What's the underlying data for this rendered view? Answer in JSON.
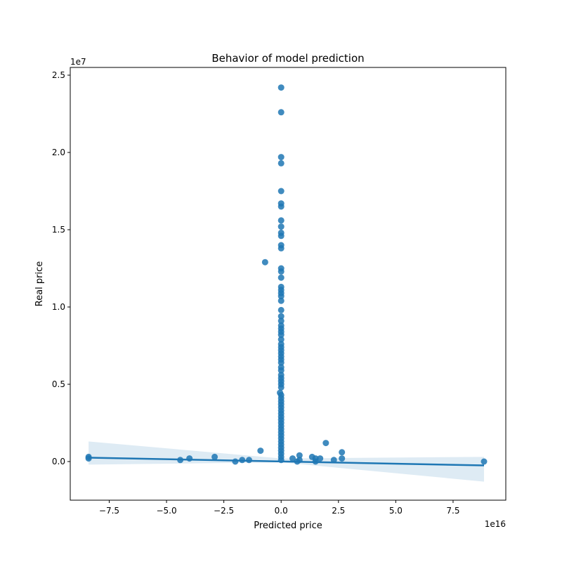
{
  "chart_data": {
    "type": "scatter",
    "title": "Behavior of model prediction",
    "xlabel": "Predicted price",
    "ylabel": "Real price",
    "x_offset_label": "1e16",
    "y_offset_label": "1e7",
    "xlim": [
      -9.2,
      9.8
    ],
    "ylim": [
      -0.25,
      2.55
    ],
    "xticks": [
      -7.5,
      -5.0,
      -2.5,
      0.0,
      2.5,
      5.0,
      7.5
    ],
    "xtick_labels": [
      "−7.5",
      "−5.0",
      "−2.5",
      "0.0",
      "2.5",
      "5.0",
      "7.5"
    ],
    "yticks": [
      0.0,
      0.5,
      1.0,
      1.5,
      2.0,
      2.5
    ],
    "ytick_labels": [
      "0.0",
      "0.5",
      "1.0",
      "1.5",
      "2.0",
      "2.5"
    ],
    "grid": false,
    "colors": {
      "points": "#1f77b4",
      "line": "#1f77b4",
      "band": "#1f77b4"
    },
    "series": [
      {
        "type": "scatter",
        "points": [
          [
            0.0,
            2.42
          ],
          [
            0.0,
            2.26
          ],
          [
            0.0,
            1.97
          ],
          [
            0.0,
            1.93
          ],
          [
            0.0,
            1.75
          ],
          [
            0.0,
            1.67
          ],
          [
            0.0,
            1.65
          ],
          [
            0.0,
            1.56
          ],
          [
            0.0,
            1.52
          ],
          [
            0.0,
            1.48
          ],
          [
            0.0,
            1.46
          ],
          [
            0.0,
            1.4
          ],
          [
            0.0,
            1.38
          ],
          [
            -0.7,
            1.29
          ],
          [
            0.0,
            1.25
          ],
          [
            0.0,
            1.23
          ],
          [
            0.0,
            1.19
          ],
          [
            0.0,
            1.13
          ],
          [
            0.0,
            1.11
          ],
          [
            0.0,
            1.09
          ],
          [
            0.0,
            1.07
          ],
          [
            0.0,
            1.04
          ],
          [
            0.0,
            0.98
          ],
          [
            0.0,
            0.94
          ],
          [
            0.0,
            0.91
          ],
          [
            0.0,
            0.88
          ],
          [
            0.0,
            0.86
          ],
          [
            0.0,
            0.84
          ],
          [
            0.0,
            0.82
          ],
          [
            0.0,
            0.79
          ],
          [
            0.0,
            0.76
          ],
          [
            0.0,
            0.74
          ],
          [
            0.0,
            0.72
          ],
          [
            0.0,
            0.7
          ],
          [
            0.0,
            0.68
          ],
          [
            0.0,
            0.66
          ],
          [
            0.0,
            0.64
          ],
          [
            0.0,
            0.61
          ],
          [
            0.0,
            0.59
          ],
          [
            0.0,
            0.56
          ],
          [
            0.0,
            0.54
          ],
          [
            0.0,
            0.52
          ],
          [
            0.0,
            0.5
          ],
          [
            0.0,
            0.48
          ],
          [
            -0.05,
            0.445
          ],
          [
            0.0,
            0.43
          ],
          [
            0.0,
            0.41
          ],
          [
            0.0,
            0.39
          ],
          [
            0.0,
            0.37
          ],
          [
            0.0,
            0.35
          ],
          [
            0.0,
            0.33
          ],
          [
            0.0,
            0.31
          ],
          [
            0.0,
            0.29
          ],
          [
            0.0,
            0.27
          ],
          [
            0.0,
            0.25
          ],
          [
            0.0,
            0.23
          ],
          [
            0.0,
            0.21
          ],
          [
            0.0,
            0.19
          ],
          [
            0.0,
            0.17
          ],
          [
            0.0,
            0.15
          ],
          [
            0.0,
            0.13
          ],
          [
            0.0,
            0.11
          ],
          [
            0.0,
            0.09
          ],
          [
            0.0,
            0.07
          ],
          [
            0.0,
            0.05
          ],
          [
            0.0,
            0.03
          ],
          [
            0.0,
            0.01
          ],
          [
            -8.4,
            0.03
          ],
          [
            -8.4,
            0.02
          ],
          [
            -4.4,
            0.01
          ],
          [
            -4.0,
            0.02
          ],
          [
            -2.9,
            0.03
          ],
          [
            -2.0,
            0.0
          ],
          [
            -1.7,
            0.01
          ],
          [
            -1.4,
            0.01
          ],
          [
            -0.9,
            0.07
          ],
          [
            0.5,
            0.02
          ],
          [
            0.7,
            0.0
          ],
          [
            0.8,
            0.04
          ],
          [
            0.8,
            0.01
          ],
          [
            1.35,
            0.03
          ],
          [
            1.5,
            0.02
          ],
          [
            1.5,
            0.0
          ],
          [
            1.7,
            0.02
          ],
          [
            1.95,
            0.12
          ],
          [
            2.3,
            0.01
          ],
          [
            2.65,
            0.06
          ],
          [
            2.65,
            0.02
          ],
          [
            8.85,
            0.0
          ]
        ]
      },
      {
        "type": "regression",
        "line": [
          [
            -8.4,
            0.025
          ],
          [
            8.85,
            -0.025
          ]
        ],
        "ci_upper": [
          [
            -8.4,
            0.13
          ],
          [
            0.0,
            0.02
          ],
          [
            8.85,
            0.03
          ]
        ],
        "ci_lower": [
          [
            -8.4,
            -0.02
          ],
          [
            0.0,
            -0.005
          ],
          [
            8.85,
            -0.13
          ]
        ]
      }
    ]
  }
}
